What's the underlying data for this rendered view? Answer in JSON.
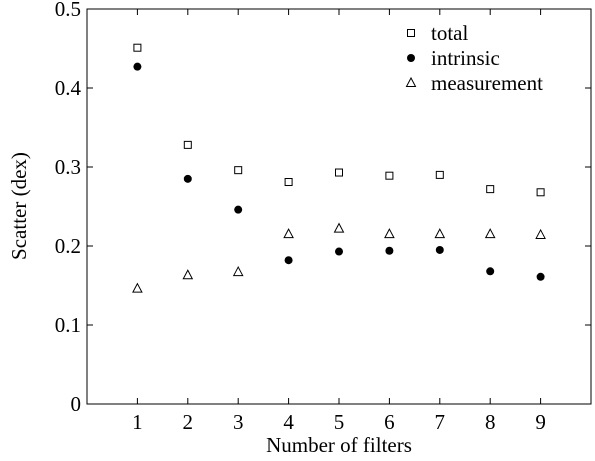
{
  "chart_data": {
    "type": "scatter",
    "title": "",
    "xlabel": "Number of filters",
    "ylabel": "Scatter (dex)",
    "x": [
      1,
      2,
      3,
      4,
      5,
      6,
      7,
      8,
      9
    ],
    "xlim": [
      0,
      10
    ],
    "ylim": [
      0,
      0.5
    ],
    "xticks": [
      1,
      2,
      3,
      4,
      5,
      6,
      7,
      8,
      9
    ],
    "yticks": [
      0,
      0.1,
      0.2,
      0.3,
      0.4,
      0.5
    ],
    "ytick_labels": [
      "0",
      "0.1",
      "0.2",
      "0.3",
      "0.4",
      "0.5"
    ],
    "grid": false,
    "legend_position": "top-right",
    "series": [
      {
        "name": "total",
        "marker": "open-square",
        "color": "#000000",
        "values": [
          0.451,
          0.328,
          0.296,
          0.281,
          0.293,
          0.289,
          0.29,
          0.272,
          0.268
        ]
      },
      {
        "name": "intrinsic",
        "marker": "filled-circle",
        "color": "#000000",
        "values": [
          0.427,
          0.285,
          0.246,
          0.182,
          0.193,
          0.194,
          0.195,
          0.168,
          0.161
        ]
      },
      {
        "name": "measurement",
        "marker": "open-triangle",
        "color": "#000000",
        "values": [
          0.146,
          0.163,
          0.167,
          0.215,
          0.222,
          0.215,
          0.215,
          0.215,
          0.214
        ]
      }
    ]
  }
}
